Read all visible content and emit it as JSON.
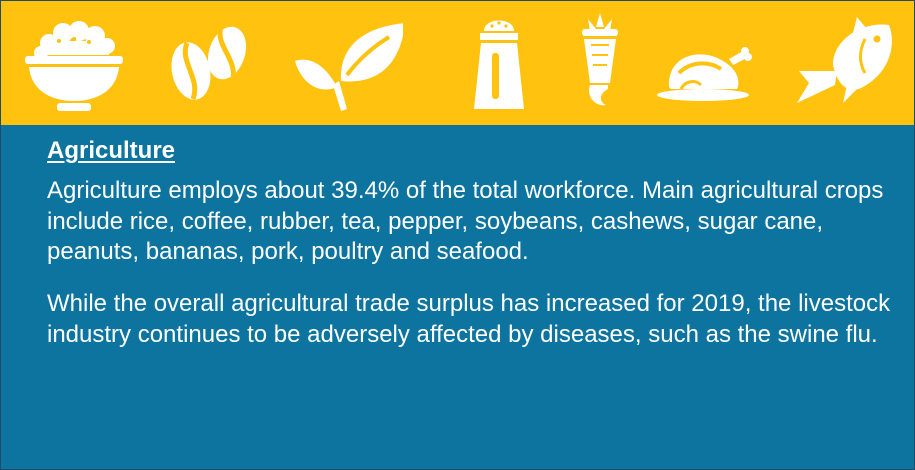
{
  "banner": {
    "background": "#ffc20e",
    "icons": [
      "rice-bowl-icon",
      "coffee-bean-icon",
      "leaf-icon",
      "pepper-shaker-icon",
      "cashew-icon",
      "roast-poultry-icon",
      "fish-icon"
    ]
  },
  "panel": {
    "background": "#0d74a0",
    "heading": "Agriculture",
    "paragraph1": "Agriculture employs about 39.4% of the total workforce. Main agricultural crops include rice, coffee, rubber, tea, pepper, soybeans, cashews, sugar cane, peanuts, bananas, pork, poultry and seafood.",
    "paragraph2": "While the overall agricultural trade surplus has increased for 2019, the livestock industry continues to be adversely affected by diseases, such as the swine flu."
  }
}
